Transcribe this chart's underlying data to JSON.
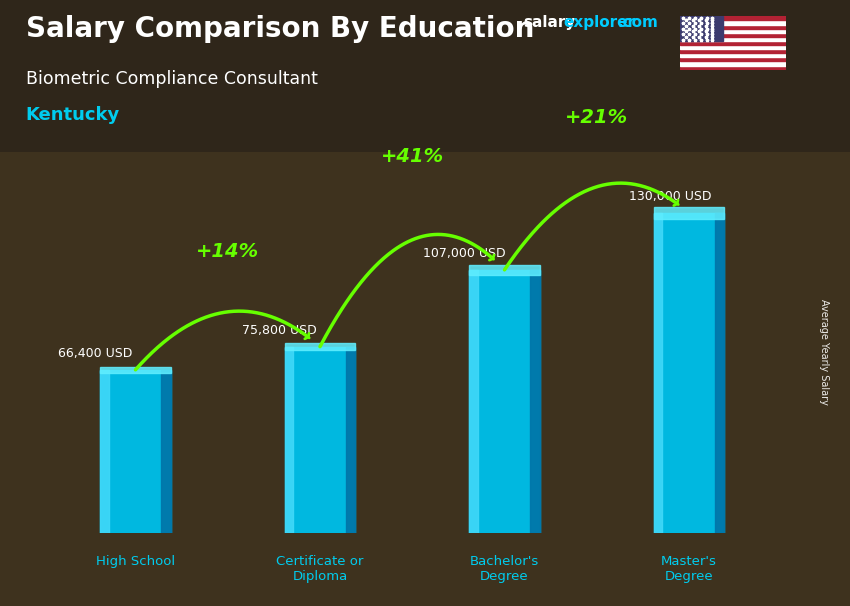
{
  "title_main": "Salary Comparison By Education",
  "subtitle1": "Biometric Compliance Consultant",
  "subtitle2": "Kentucky",
  "categories": [
    "High School",
    "Certificate or\nDiploma",
    "Bachelor's\nDegree",
    "Master's\nDegree"
  ],
  "values": [
    66400,
    75800,
    107000,
    130000
  ],
  "value_labels": [
    "66,400 USD",
    "75,800 USD",
    "107,000 USD",
    "130,000 USD"
  ],
  "pct_labels": [
    "+14%",
    "+41%",
    "+21%"
  ],
  "bar_color_main": "#00b8e0",
  "bar_color_left": "#40d8f8",
  "bar_color_right": "#0077aa",
  "bar_color_top": "#60eeff",
  "bg_color": "#3a3020",
  "text_color_white": "#ffffff",
  "text_color_cyan": "#00ccee",
  "text_color_green": "#66ff00",
  "ylabel": "Average Yearly Salary",
  "ylim": [
    0,
    160000
  ],
  "brand_salary_color": "#ffffff",
  "brand_explorer_color": "#00ccff",
  "brand_com_color": "#00ccff"
}
